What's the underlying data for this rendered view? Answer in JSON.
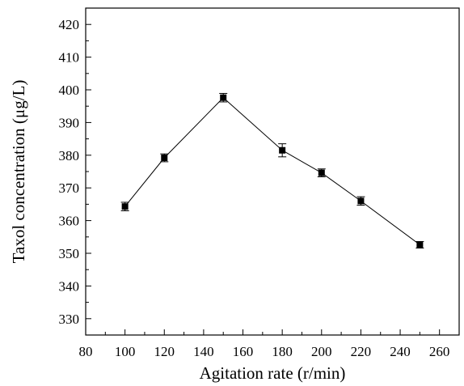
{
  "chart_data": {
    "type": "line",
    "title": "",
    "xlabel": "Agitation rate (r/min)",
    "ylabel": "Taxol concentration (μg/L)",
    "xlim": [
      80,
      270
    ],
    "ylim": [
      325,
      425
    ],
    "xticks": [
      80,
      100,
      120,
      140,
      160,
      180,
      200,
      220,
      240,
      260
    ],
    "yticks": [
      330,
      340,
      350,
      360,
      370,
      380,
      390,
      400,
      410,
      420
    ],
    "grid": false,
    "legend": "none",
    "series": [
      {
        "x": [
          100,
          120,
          150,
          180,
          200,
          220,
          250
        ],
        "y": [
          364.3,
          379.2,
          397.6,
          381.5,
          374.6,
          366.0,
          352.6
        ],
        "error": [
          1.3,
          1.2,
          1.3,
          2.0,
          1.2,
          1.3,
          1.0
        ]
      }
    ],
    "colors": {
      "line": "#000000",
      "marker": "#000000",
      "axis": "#000000"
    }
  }
}
